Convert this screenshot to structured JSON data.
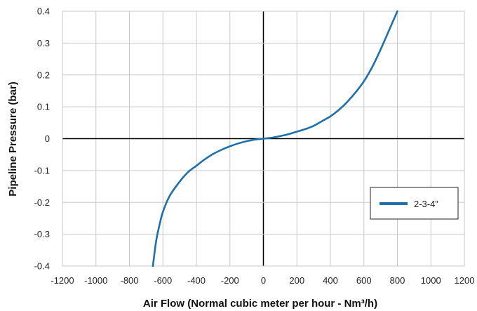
{
  "chart_data": {
    "type": "line",
    "xlabel": "Air Flow (Normal cubic meter per hour - Nm³/h)",
    "ylabel": "Pipeline Pressure (bar)",
    "xlim": [
      -1200,
      1200
    ],
    "ylim": [
      -0.4,
      0.4
    ],
    "x_ticks": [
      "-1200",
      "-1000",
      "-800",
      "-600",
      "-400",
      "-200",
      "0",
      "200",
      "400",
      "600",
      "800",
      "1000",
      "1200"
    ],
    "y_ticks": [
      "0.4",
      "0.3",
      "0.2",
      "0.1",
      "0",
      "-0.1",
      "-0.2",
      "-0.3",
      "-0.4"
    ],
    "grid": true,
    "legend_position": "right",
    "series": [
      {
        "name": "2-3-4”",
        "color": "#1f6fa8",
        "points": [
          [
            -660,
            -0.4
          ],
          [
            -640,
            -0.32
          ],
          [
            -620,
            -0.27
          ],
          [
            -600,
            -0.23
          ],
          [
            -560,
            -0.18
          ],
          [
            -500,
            -0.135
          ],
          [
            -450,
            -0.105
          ],
          [
            -400,
            -0.085
          ],
          [
            -350,
            -0.065
          ],
          [
            -300,
            -0.048
          ],
          [
            -250,
            -0.035
          ],
          [
            -200,
            -0.024
          ],
          [
            -150,
            -0.015
          ],
          [
            -100,
            -0.008
          ],
          [
            -50,
            -0.003
          ],
          [
            0,
            0
          ],
          [
            50,
            0.003
          ],
          [
            100,
            0.008
          ],
          [
            150,
            0.014
          ],
          [
            200,
            0.022
          ],
          [
            250,
            0.03
          ],
          [
            300,
            0.04
          ],
          [
            350,
            0.055
          ],
          [
            400,
            0.07
          ],
          [
            450,
            0.09
          ],
          [
            500,
            0.115
          ],
          [
            550,
            0.145
          ],
          [
            600,
            0.18
          ],
          [
            650,
            0.225
          ],
          [
            700,
            0.28
          ],
          [
            750,
            0.34
          ],
          [
            800,
            0.4
          ]
        ]
      }
    ]
  }
}
